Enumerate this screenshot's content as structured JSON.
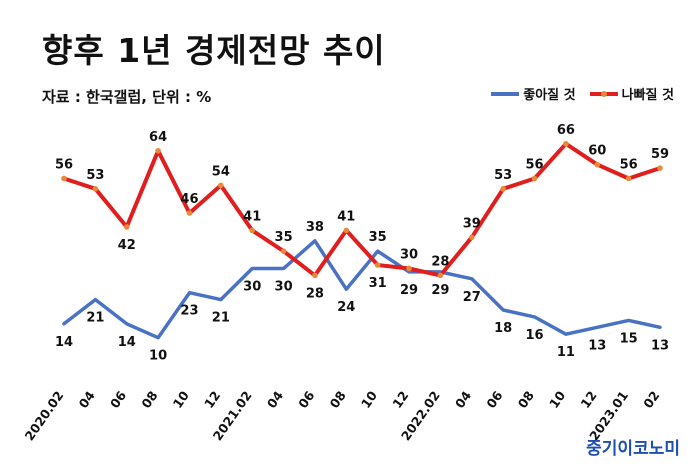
{
  "title": "향후 1년 경제전망 추이",
  "subtitle": "자료 : 한국갤럽, 단위 : %",
  "brand": "중기이코노미",
  "colors": {
    "good": "#4a72c4",
    "bad": "#e11d1d",
    "marker": "#e8893a"
  },
  "chart_data": {
    "type": "line",
    "categories": [
      "2020.02",
      "04",
      "06",
      "08",
      "10",
      "12",
      "2021.02",
      "04",
      "06",
      "08",
      "10",
      "12",
      "2022.02",
      "04",
      "06",
      "08",
      "10",
      "12",
      "2023.01",
      "02"
    ],
    "series": [
      {
        "name": "좋아질 것",
        "color": "#4a72c4",
        "values": [
          14,
          21,
          14,
          10,
          23,
          21,
          30,
          30,
          38,
          24,
          35,
          29,
          29,
          27,
          18,
          16,
          11,
          13,
          15,
          13
        ],
        "labels": [
          "14",
          "21",
          "14",
          "10",
          "23",
          "21",
          "30",
          "30",
          "38",
          "24",
          "35",
          "29",
          "29",
          "27",
          "18",
          "16",
          "11",
          "13",
          "15",
          "13"
        ]
      },
      {
        "name": "나빠질 것",
        "color": "#e11d1d",
        "values": [
          56,
          53,
          42,
          64,
          46,
          54,
          41,
          35,
          28,
          41,
          31,
          30,
          28,
          39,
          53,
          56,
          66,
          60,
          56,
          59
        ],
        "labels": [
          "56",
          "53",
          "42",
          "64",
          "46",
          "54",
          "41",
          "35",
          "28",
          "41",
          "31",
          "30",
          "28",
          "39",
          "53",
          "56",
          "66",
          "60",
          "56",
          "59"
        ]
      }
    ],
    "ylim": [
      5,
      70
    ],
    "grid": false,
    "legend": "top-right"
  }
}
